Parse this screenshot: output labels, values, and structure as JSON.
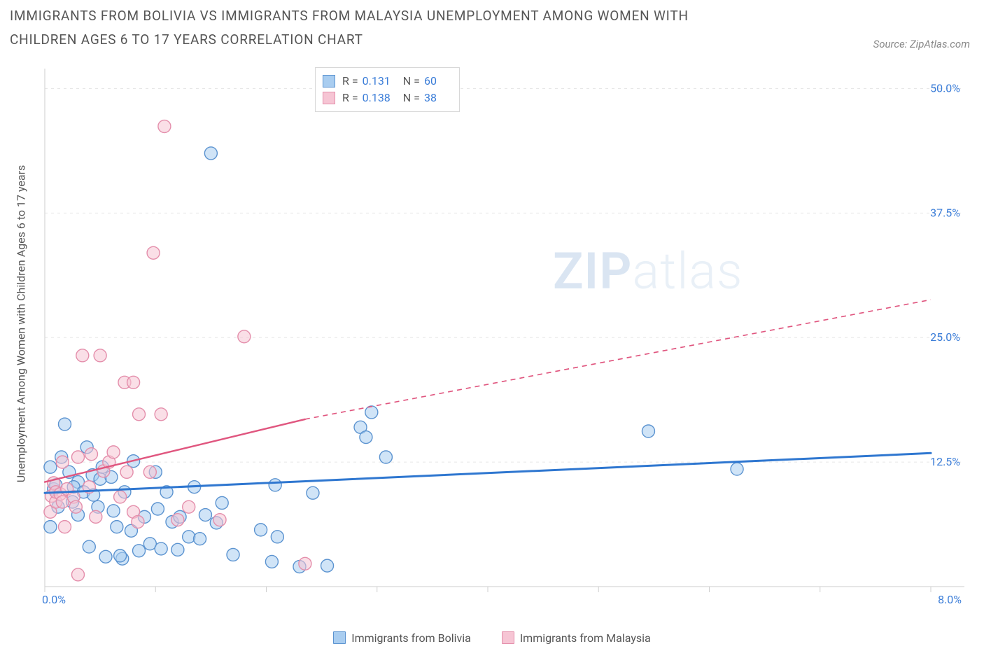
{
  "title": "IMMIGRANTS FROM BOLIVIA VS IMMIGRANTS FROM MALAYSIA UNEMPLOYMENT AMONG WOMEN WITH CHILDREN AGES 6 TO 17 YEARS CORRELATION CHART",
  "source": "Source: ZipAtlas.com",
  "y_axis_label": "Unemployment Among Women with Children Ages 6 to 17 years",
  "watermark_a": "ZIP",
  "watermark_b": "atlas",
  "chart": {
    "type": "scatter",
    "background_color": "#ffffff",
    "grid_color": "#e7e7e7",
    "axis_line_color": "#d6d6d6",
    "tick_color": "#cfcfcf",
    "label_color": "#3b7dd8",
    "xlim": [
      0,
      8
    ],
    "ylim": [
      0,
      52
    ],
    "x_ticks": [
      0,
      1,
      2,
      3,
      4,
      5,
      6,
      7,
      8
    ],
    "x_tick_labels_shown": {
      "0": "0.0%",
      "8": "8.0%"
    },
    "y_gridlines": [
      12.5,
      25,
      37.5,
      50
    ],
    "y_tick_labels": [
      "12.5%",
      "25.0%",
      "37.5%",
      "50.0%"
    ],
    "marker_radius": 9,
    "marker_opacity": 0.55,
    "marker_stroke_width": 1.4,
    "label_fontsize": 16
  },
  "series": [
    {
      "key": "bolivia",
      "label": "Immigrants from Bolivia",
      "fill": "#a9cdf0",
      "stroke": "#5b93d0",
      "swatch_fill": "#a9cdf0",
      "swatch_stroke": "#5b93d0",
      "R": "0.131",
      "N": "60",
      "regression": {
        "x1": 0.0,
        "y1": 9.4,
        "x2": 8.0,
        "y2": 13.4,
        "color": "#2f77d0",
        "width": 3
      },
      "points": [
        [
          0.05,
          6.0
        ],
        [
          0.08,
          9.8
        ],
        [
          0.1,
          10.2
        ],
        [
          0.12,
          8.0
        ],
        [
          0.15,
          13.0
        ],
        [
          0.18,
          16.3
        ],
        [
          0.22,
          11.5
        ],
        [
          0.25,
          8.5
        ],
        [
          0.3,
          7.2
        ],
        [
          0.3,
          10.5
        ],
        [
          0.26,
          10.0
        ],
        [
          0.35,
          9.5
        ],
        [
          0.38,
          14.0
        ],
        [
          0.4,
          4.0
        ],
        [
          0.43,
          11.2
        ],
        [
          0.44,
          9.2
        ],
        [
          0.48,
          8.0
        ],
        [
          0.5,
          10.8
        ],
        [
          0.52,
          12.0
        ],
        [
          0.55,
          3.0
        ],
        [
          0.6,
          11.0
        ],
        [
          0.62,
          7.6
        ],
        [
          0.65,
          6.0
        ],
        [
          0.7,
          2.8
        ],
        [
          0.72,
          9.5
        ],
        [
          0.78,
          5.6
        ],
        [
          0.8,
          12.6
        ],
        [
          0.85,
          3.6
        ],
        [
          0.9,
          7.0
        ],
        [
          0.95,
          4.3
        ],
        [
          1.0,
          11.5
        ],
        [
          1.02,
          7.8
        ],
        [
          1.05,
          3.8
        ],
        [
          1.1,
          9.5
        ],
        [
          1.15,
          6.5
        ],
        [
          1.2,
          3.7
        ],
        [
          1.22,
          7.0
        ],
        [
          0.05,
          12.0
        ],
        [
          1.3,
          5.0
        ],
        [
          1.35,
          10.0
        ],
        [
          1.4,
          4.8
        ],
        [
          1.45,
          7.2
        ],
        [
          1.5,
          43.5
        ],
        [
          1.55,
          6.4
        ],
        [
          1.6,
          8.4
        ],
        [
          1.7,
          3.2
        ],
        [
          1.95,
          5.7
        ],
        [
          2.05,
          2.5
        ],
        [
          2.08,
          10.2
        ],
        [
          2.1,
          5.0
        ],
        [
          2.3,
          2.0
        ],
        [
          2.42,
          9.4
        ],
        [
          2.55,
          2.1
        ],
        [
          2.85,
          16.0
        ],
        [
          2.9,
          15.0
        ],
        [
          2.95,
          17.5
        ],
        [
          3.08,
          13.0
        ],
        [
          5.45,
          15.6
        ],
        [
          6.25,
          11.8
        ],
        [
          0.68,
          3.1
        ]
      ]
    },
    {
      "key": "malaysia",
      "label": "Immigrants from Malaysia",
      "fill": "#f6c5d4",
      "stroke": "#e48eab",
      "swatch_fill": "#f6c5d4",
      "swatch_stroke": "#e48eab",
      "R": "0.138",
      "N": "38",
      "regression": {
        "x1": 0.0,
        "y1": 10.5,
        "x2": 2.35,
        "y2": 16.8,
        "color": "#e0567f",
        "width": 2.4,
        "dash_x1": 2.35,
        "dash_y1": 16.8,
        "dash_x2": 8.0,
        "dash_y2": 28.8,
        "dash": "7,6"
      },
      "points": [
        [
          0.05,
          7.5
        ],
        [
          0.06,
          9.1
        ],
        [
          0.08,
          10.4
        ],
        [
          0.1,
          8.5
        ],
        [
          0.1,
          9.5
        ],
        [
          0.14,
          9.3
        ],
        [
          0.16,
          8.5
        ],
        [
          0.16,
          12.5
        ],
        [
          0.18,
          6.0
        ],
        [
          0.2,
          9.8
        ],
        [
          0.26,
          9.0
        ],
        [
          0.28,
          8.0
        ],
        [
          0.3,
          13.0
        ],
        [
          0.3,
          1.2
        ],
        [
          0.34,
          23.2
        ],
        [
          0.4,
          10.0
        ],
        [
          0.42,
          13.3
        ],
        [
          0.46,
          7.0
        ],
        [
          0.5,
          23.2
        ],
        [
          0.53,
          11.6
        ],
        [
          0.58,
          12.5
        ],
        [
          0.62,
          13.5
        ],
        [
          0.68,
          9.0
        ],
        [
          0.72,
          20.5
        ],
        [
          0.74,
          11.5
        ],
        [
          0.8,
          20.5
        ],
        [
          0.8,
          7.5
        ],
        [
          0.84,
          6.5
        ],
        [
          0.85,
          17.3
        ],
        [
          0.95,
          11.5
        ],
        [
          0.98,
          33.5
        ],
        [
          1.05,
          17.3
        ],
        [
          1.08,
          46.2
        ],
        [
          1.2,
          6.7
        ],
        [
          1.3,
          8.0
        ],
        [
          1.58,
          6.7
        ],
        [
          1.8,
          25.1
        ],
        [
          2.35,
          2.3
        ]
      ]
    }
  ],
  "stats_legend": {
    "r_label": "R =",
    "n_label": "N ="
  }
}
